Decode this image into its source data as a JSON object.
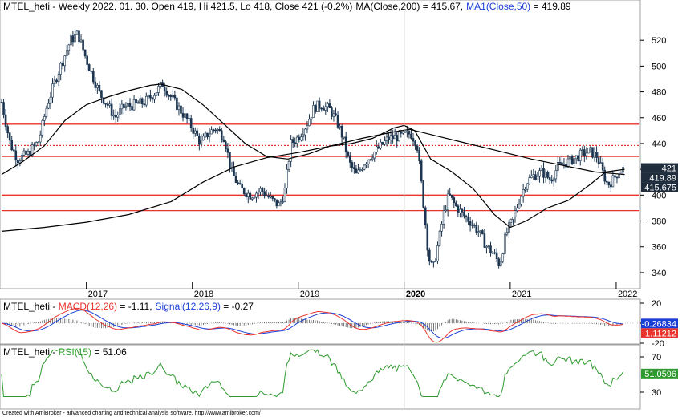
{
  "chart_data": [
    {
      "type": "candlestick",
      "header": {
        "ticker": "MTEL_heti",
        "sep": " - ",
        "info": "Weekly 2022. 01. 30. Open 419, Hi 421.5, Lo 418, Close 421 (-0.2%)",
        "ma200": "MA(Close,200) = 415.67,",
        "ma50_name": "MA1(Close,50)",
        "ma50_val": " = 419.89"
      },
      "ylim": [
        330,
        540
      ],
      "y_ticks": [
        340,
        360,
        380,
        400,
        420,
        440,
        460,
        480,
        500,
        520
      ],
      "x_ticks": [
        {
          "label": "2017",
          "x": 2017.0,
          "bold": false
        },
        {
          "label": "2018",
          "x": 2018.0,
          "bold": false
        },
        {
          "label": "2019",
          "x": 2019.0,
          "bold": false
        },
        {
          "label": "2020",
          "x": 2020.0,
          "bold": true
        },
        {
          "label": "2021",
          "x": 2021.0,
          "bold": false
        },
        {
          "label": "2022",
          "x": 2022.0,
          "bold": false
        }
      ],
      "xlim": [
        2016.2,
        2022.22
      ],
      "horizontal_levels": [
        {
          "value": 455,
          "style": "solid",
          "color": "#e8332e"
        },
        {
          "value": 438.5,
          "style": "dotted",
          "color": "#e8332e"
        },
        {
          "value": 430,
          "style": "solid",
          "color": "#e8332e"
        },
        {
          "value": 400,
          "style": "solid",
          "color": "#e8332e"
        },
        {
          "value": 388,
          "style": "solid",
          "color": "#e8332e"
        }
      ],
      "price_path": [
        [
          2016.2,
          472
        ],
        [
          2016.28,
          440
        ],
        [
          2016.35,
          428
        ],
        [
          2016.45,
          432
        ],
        [
          2016.55,
          442
        ],
        [
          2016.63,
          470
        ],
        [
          2016.72,
          492
        ],
        [
          2016.78,
          505
        ],
        [
          2016.85,
          520
        ],
        [
          2016.92,
          525
        ],
        [
          2017.0,
          505
        ],
        [
          2017.06,
          492
        ],
        [
          2017.13,
          478
        ],
        [
          2017.2,
          470
        ],
        [
          2017.27,
          460
        ],
        [
          2017.35,
          468
        ],
        [
          2017.45,
          470
        ],
        [
          2017.55,
          472
        ],
        [
          2017.63,
          478
        ],
        [
          2017.72,
          486
        ],
        [
          2017.78,
          478
        ],
        [
          2017.85,
          470
        ],
        [
          2017.92,
          462
        ],
        [
          2018.0,
          452
        ],
        [
          2018.08,
          440
        ],
        [
          2018.15,
          448
        ],
        [
          2018.22,
          452
        ],
        [
          2018.3,
          445
        ],
        [
          2018.37,
          418
        ],
        [
          2018.45,
          405
        ],
        [
          2018.55,
          400
        ],
        [
          2018.65,
          404
        ],
        [
          2018.75,
          396
        ],
        [
          2018.82,
          392
        ],
        [
          2018.87,
          402
        ],
        [
          2018.93,
          440
        ],
        [
          2019.0,
          445
        ],
        [
          2019.08,
          455
        ],
        [
          2019.15,
          468
        ],
        [
          2019.22,
          470
        ],
        [
          2019.3,
          466
        ],
        [
          2019.37,
          456
        ],
        [
          2019.42,
          445
        ],
        [
          2019.48,
          425
        ],
        [
          2019.55,
          415
        ],
        [
          2019.62,
          425
        ],
        [
          2019.7,
          432
        ],
        [
          2019.78,
          438
        ],
        [
          2019.85,
          444
        ],
        [
          2019.92,
          445
        ],
        [
          2020.0,
          446
        ],
        [
          2020.06,
          448
        ],
        [
          2020.12,
          440
        ],
        [
          2020.16,
          410
        ],
        [
          2020.2,
          378
        ],
        [
          2020.23,
          352
        ],
        [
          2020.27,
          342
        ],
        [
          2020.32,
          362
        ],
        [
          2020.37,
          385
        ],
        [
          2020.42,
          400
        ],
        [
          2020.48,
          392
        ],
        [
          2020.55,
          385
        ],
        [
          2020.62,
          380
        ],
        [
          2020.7,
          372
        ],
        [
          2020.78,
          360
        ],
        [
          2020.85,
          354
        ],
        [
          2020.9,
          346
        ],
        [
          2020.96,
          370
        ],
        [
          2021.02,
          380
        ],
        [
          2021.08,
          395
        ],
        [
          2021.15,
          410
        ],
        [
          2021.22,
          415
        ],
        [
          2021.3,
          418
        ],
        [
          2021.38,
          412
        ],
        [
          2021.45,
          422
        ],
        [
          2021.52,
          425
        ],
        [
          2021.6,
          428
        ],
        [
          2021.68,
          432
        ],
        [
          2021.75,
          434
        ],
        [
          2021.82,
          430
        ],
        [
          2021.87,
          418
        ],
        [
          2021.92,
          408
        ],
        [
          2021.97,
          412
        ],
        [
          2022.02,
          418
        ],
        [
          2022.08,
          421
        ]
      ],
      "ma200_path": [
        [
          2016.2,
          372
        ],
        [
          2016.6,
          375
        ],
        [
          2017.0,
          379
        ],
        [
          2017.4,
          385
        ],
        [
          2017.8,
          395
        ],
        [
          2018.1,
          410
        ],
        [
          2018.4,
          422
        ],
        [
          2018.7,
          429
        ],
        [
          2019.0,
          433
        ],
        [
          2019.3,
          438
        ],
        [
          2019.6,
          444
        ],
        [
          2019.9,
          449
        ],
        [
          2020.05,
          451
        ],
        [
          2020.3,
          446
        ],
        [
          2020.6,
          440
        ],
        [
          2020.9,
          434
        ],
        [
          2021.2,
          428
        ],
        [
          2021.5,
          423
        ],
        [
          2021.8,
          418
        ],
        [
          2022.08,
          416
        ]
      ],
      "ma50_path": [
        [
          2016.2,
          416
        ],
        [
          2016.4,
          426
        ],
        [
          2016.6,
          438
        ],
        [
          2016.8,
          458
        ],
        [
          2017.0,
          470
        ],
        [
          2017.2,
          476
        ],
        [
          2017.4,
          481
        ],
        [
          2017.6,
          485
        ],
        [
          2017.7,
          486
        ],
        [
          2017.9,
          482
        ],
        [
          2018.1,
          470
        ],
        [
          2018.3,
          455
        ],
        [
          2018.5,
          440
        ],
        [
          2018.7,
          430
        ],
        [
          2018.9,
          428
        ],
        [
          2019.1,
          432
        ],
        [
          2019.3,
          438
        ],
        [
          2019.5,
          440
        ],
        [
          2019.7,
          444
        ],
        [
          2019.9,
          452
        ],
        [
          2020.0,
          454
        ],
        [
          2020.1,
          450
        ],
        [
          2020.25,
          428
        ],
        [
          2020.45,
          418
        ],
        [
          2020.65,
          405
        ],
        [
          2020.85,
          385
        ],
        [
          2021.0,
          375
        ],
        [
          2021.15,
          380
        ],
        [
          2021.35,
          390
        ],
        [
          2021.55,
          396
        ],
        [
          2021.75,
          408
        ],
        [
          2021.9,
          418
        ],
        [
          2022.08,
          420
        ]
      ],
      "right_labels": [
        {
          "text": "421",
          "value": 421,
          "bg": "#1f2d3d",
          "fg": "#ffffff"
        },
        {
          "text": "419.89",
          "value": 419.89,
          "bg": "#1f2d3d",
          "fg": "#ffffff"
        },
        {
          "text": "415.675",
          "value": 415.675,
          "bg": "#1f2d3d",
          "fg": "#ffffff"
        }
      ]
    },
    {
      "type": "line",
      "header": {
        "ticker": "MTEL_heti",
        "sep": " - ",
        "macd": "MACD(12,26)",
        "macd_val": " = -1.11,",
        "signal": "Signal(12,26,9)",
        "signal_val": " = -0.27"
      },
      "ylim": [
        -20,
        20
      ],
      "y_ticks": [
        20,
        0,
        -20
      ],
      "right_labels": [
        {
          "text": "-0.26834",
          "value": -0.26834,
          "bg": "#1a3fd6",
          "fg": "#ffffff"
        },
        {
          "text": "-1.11212",
          "value": -1.11212,
          "bg": "#e8332e",
          "fg": "#ffffff"
        }
      ]
    },
    {
      "type": "line",
      "header": {
        "ticker": "MTEL_heti",
        "sep": " - ",
        "rsi": "RSI(15)",
        "rsi_val": " = 51.06"
      },
      "ylim": [
        20,
        80
      ],
      "y_ticks": [
        70,
        30
      ],
      "right_labels": [
        {
          "text": "51.0596",
          "value": 51.0596,
          "bg": "#2e9a2e",
          "fg": "#ffffff"
        }
      ]
    }
  ],
  "footer": "Created with AmiBroker - advanced charting and technical analysis software. http://www.amibroker.com/",
  "colors": {
    "price": "#1c3550",
    "ma": "#000000",
    "levels": "#e8332e",
    "macd": "#e8332e",
    "signal": "#1a3fd6",
    "rsi": "#2e9a2e"
  }
}
